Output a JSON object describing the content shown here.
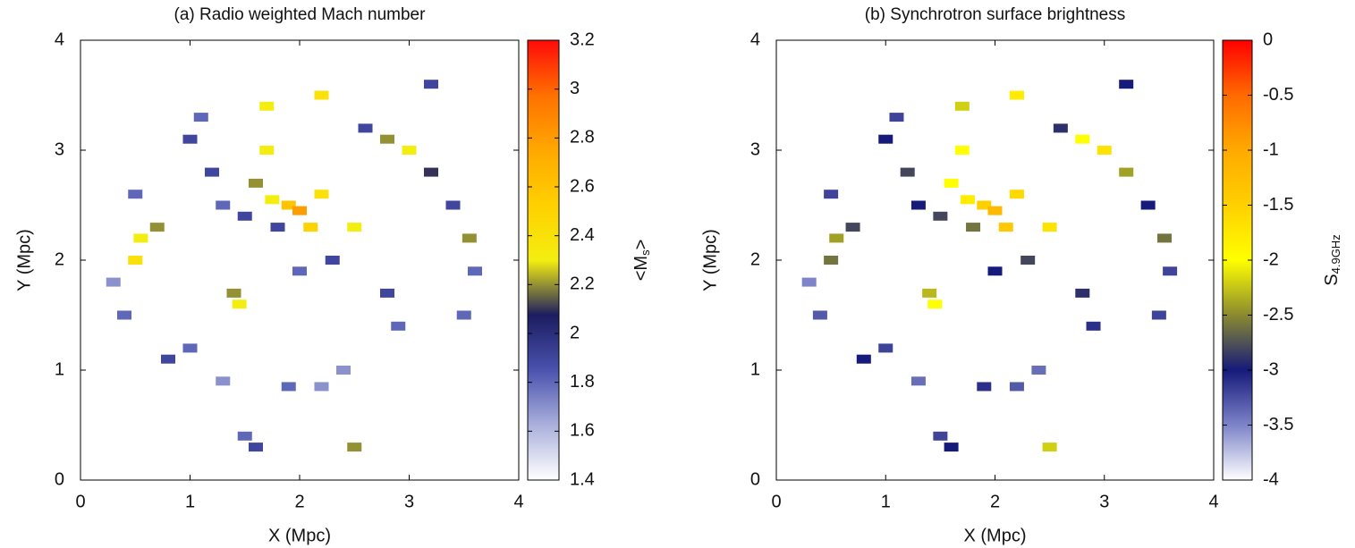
{
  "chart_data": [
    {
      "type": "heatmap",
      "title": "(a) Radio weighted Mach number",
      "xlabel": "X (Mpc)",
      "ylabel": "Y (Mpc)",
      "xlim": [
        0,
        4
      ],
      "ylim": [
        0,
        4
      ],
      "xticks": [
        0,
        1,
        2,
        3,
        4
      ],
      "yticks": [
        0,
        1,
        2,
        3,
        4
      ],
      "colorbar_label": "<M",
      "colorbar_label_sub": "s",
      "colorbar_label_end": ">",
      "clim": [
        1.4,
        3.2
      ],
      "cticks": [
        1.4,
        1.6,
        1.8,
        2,
        2.2,
        2.4,
        2.6,
        2.8,
        3,
        3.2
      ],
      "colormap": [
        "#ffffff",
        "#aab0dc",
        "#4a52ae",
        "#1c1c60",
        "#f4ee10",
        "#ffd000",
        "#ffa800",
        "#ff7000",
        "#ff0a0a"
      ],
      "x": [
        1.9,
        2.0,
        1.75,
        2.1,
        1.6,
        2.2,
        1.8,
        1.5,
        1.3,
        1.2,
        1.7,
        2.2,
        1.7,
        0.55,
        0.5,
        0.7,
        3.0,
        2.8,
        3.2,
        2.6,
        3.4,
        3.55,
        3.6,
        3.5,
        2.8,
        2.9,
        2.5,
        2.3,
        2.0,
        1.4,
        1.45,
        1.0,
        0.8,
        1.3,
        1.9,
        2.2,
        1.5,
        1.6,
        0.4,
        0.3,
        0.5,
        3.2,
        1.0,
        2.4,
        2.5,
        1.1
      ],
      "y": [
        2.5,
        2.45,
        2.55,
        2.3,
        2.7,
        2.6,
        2.3,
        2.4,
        2.5,
        2.8,
        3.0,
        3.5,
        3.4,
        2.2,
        2.0,
        2.3,
        3.0,
        3.1,
        2.8,
        3.2,
        2.5,
        2.2,
        1.9,
        1.5,
        1.7,
        1.4,
        2.3,
        2.0,
        1.9,
        1.7,
        1.6,
        1.2,
        1.1,
        0.9,
        0.85,
        0.85,
        0.4,
        0.3,
        1.5,
        1.8,
        2.6,
        3.6,
        3.1,
        1.0,
        0.3,
        3.3
      ],
      "values": [
        2.6,
        2.8,
        2.3,
        2.5,
        2.2,
        2.4,
        1.9,
        1.9,
        1.8,
        1.9,
        2.3,
        2.4,
        2.3,
        2.3,
        2.4,
        2.2,
        2.3,
        2.2,
        2.1,
        1.9,
        1.9,
        2.2,
        1.8,
        1.8,
        1.9,
        1.8,
        2.3,
        1.9,
        1.8,
        2.2,
        2.3,
        1.8,
        1.9,
        1.7,
        1.8,
        1.7,
        1.8,
        1.9,
        1.8,
        1.7,
        1.8,
        1.9,
        1.9,
        1.7,
        2.2,
        1.8
      ]
    },
    {
      "type": "heatmap",
      "title": "(b) Synchrotron surface brightness",
      "xlabel": "X (Mpc)",
      "ylabel": "Y (Mpc)",
      "xlim": [
        0,
        4
      ],
      "ylim": [
        0,
        4
      ],
      "xticks": [
        0,
        1,
        2,
        3,
        4
      ],
      "yticks": [
        0,
        1,
        2,
        3,
        4
      ],
      "colorbar_label": "S",
      "colorbar_label_sub": "4.9GHz",
      "clim": [
        -4,
        0
      ],
      "cticks": [
        -4,
        -3.5,
        -3,
        -2.5,
        -2,
        -1.5,
        -1,
        -0.5,
        0
      ],
      "colormap": [
        "#ffffff",
        "#7d84c8",
        "#161a7a",
        "#8a8a30",
        "#ffff00",
        "#ffd000",
        "#ffaa00",
        "#ff6a00",
        "#ff0000"
      ],
      "x": [
        1.9,
        2.0,
        1.75,
        2.1,
        1.6,
        2.2,
        1.8,
        1.5,
        1.3,
        1.2,
        1.7,
        2.2,
        1.7,
        0.55,
        0.5,
        0.7,
        3.0,
        2.8,
        3.2,
        2.6,
        3.4,
        3.55,
        3.6,
        3.5,
        2.8,
        2.9,
        2.5,
        2.3,
        2.0,
        1.4,
        1.45,
        1.0,
        0.8,
        1.3,
        1.9,
        2.2,
        1.5,
        1.6,
        0.4,
        0.3,
        0.5,
        3.2,
        1.0,
        2.4,
        2.5,
        1.1
      ],
      "y": [
        2.5,
        2.45,
        2.55,
        2.3,
        2.7,
        2.6,
        2.3,
        2.4,
        2.5,
        2.8,
        3.0,
        3.5,
        3.4,
        2.2,
        2.0,
        2.3,
        3.0,
        3.1,
        2.8,
        3.2,
        2.5,
        2.2,
        1.9,
        1.5,
        1.7,
        1.4,
        2.3,
        2.0,
        1.9,
        1.7,
        1.6,
        1.2,
        1.1,
        0.9,
        0.85,
        0.85,
        0.4,
        0.3,
        1.5,
        1.8,
        2.6,
        3.6,
        3.1,
        1.0,
        0.3,
        3.3
      ],
      "values": [
        -1.5,
        -1.2,
        -1.8,
        -1.4,
        -2.0,
        -1.6,
        -2.6,
        -2.8,
        -3.0,
        -2.8,
        -2.0,
        -1.8,
        -2.2,
        -2.4,
        -2.6,
        -2.8,
        -1.7,
        -2.0,
        -2.4,
        -2.9,
        -3.0,
        -2.6,
        -3.2,
        -3.2,
        -2.9,
        -3.1,
        -1.7,
        -2.8,
        -3.0,
        -2.3,
        -2.0,
        -3.2,
        -3.0,
        -3.4,
        -3.1,
        -3.3,
        -3.2,
        -3.0,
        -3.3,
        -3.5,
        -3.2,
        -3.0,
        -3.0,
        -3.4,
        -2.2,
        -3.2
      ]
    }
  ]
}
